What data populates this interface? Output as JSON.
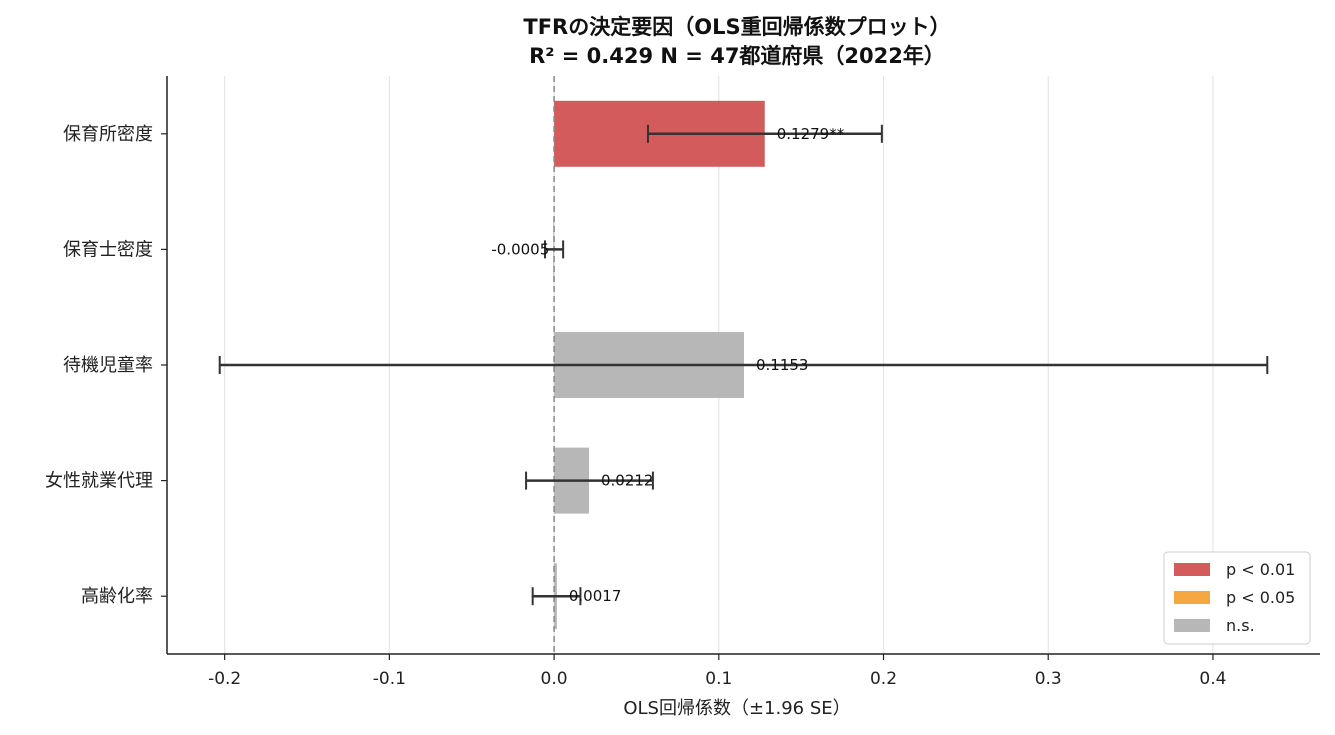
{
  "chart_data": {
    "type": "bar",
    "orientation": "horizontal",
    "title": "TFRの決定要因（OLS重回帰係数プロット）",
    "subtitle": "R² = 0.429  N = 47都道府県（2022年）",
    "xlabel": "OLS回帰係数（±1.96 SE）",
    "ylabel": "",
    "xlim": [
      -0.235,
      0.465
    ],
    "xticks": [
      -0.2,
      -0.1,
      0.0,
      0.1,
      0.2,
      0.3,
      0.4
    ],
    "xtick_labels": [
      "-0.2",
      "-0.1",
      "0.0",
      "0.1",
      "0.2",
      "0.3",
      "0.4"
    ],
    "grid": "x",
    "zero_line": "dashed",
    "categories": [
      "保育所密度",
      "保育士密度",
      "待機児童率",
      "女性就業代理",
      "高齢化率"
    ],
    "values": [
      0.1279,
      -0.0005,
      0.1153,
      0.0212,
      0.0017
    ],
    "ci_low": [
      0.057,
      -0.0055,
      -0.203,
      -0.017,
      -0.013
    ],
    "ci_high": [
      0.199,
      0.0055,
      0.433,
      0.06,
      0.016
    ],
    "significance": [
      "p < 0.01",
      "n.s.",
      "n.s.",
      "n.s.",
      "n.s."
    ],
    "value_labels": [
      "0.1279**",
      "-0.0005",
      "0.1153",
      "0.0212",
      "0.0017"
    ],
    "legend": {
      "placement": "bottom-right",
      "items": [
        {
          "label": "p < 0.01",
          "color": "#d45b5b"
        },
        {
          "label": "p < 0.05",
          "color": "#f5a742"
        },
        {
          "label": "n.s.",
          "color": "#b7b7b7"
        }
      ]
    },
    "colors": {
      "p < 0.01": "#d45b5b",
      "p < 0.05": "#f5a742",
      "n.s.": "#b7b7b7",
      "errorbar": "#333333",
      "grid": "#e6e6e6",
      "zero_line": "#888888",
      "axis": "#222222"
    }
  }
}
